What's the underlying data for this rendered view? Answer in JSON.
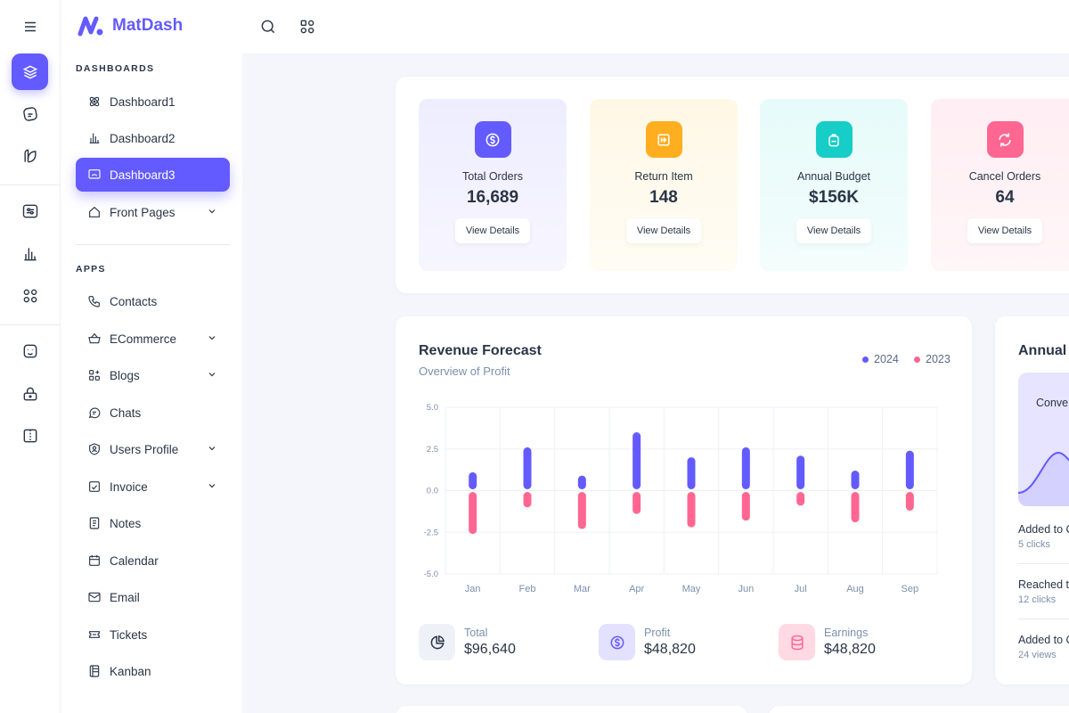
{
  "app": {
    "name": "MatDash"
  },
  "sidebar": {
    "dashboards_title": "DASHBOARDS",
    "apps_title": "APPS",
    "dashboards": [
      {
        "label": "Dashboard1",
        "icon": "atom-icon"
      },
      {
        "label": "Dashboard2",
        "icon": "chart-bar-icon"
      },
      {
        "label": "Dashboard3",
        "icon": "screen-share-icon",
        "active": true
      },
      {
        "label": "Front Pages",
        "icon": "home-icon",
        "expandable": true
      }
    ],
    "apps": [
      {
        "label": "Contacts",
        "icon": "phone-icon"
      },
      {
        "label": "ECommerce",
        "icon": "basket-icon",
        "expandable": true
      },
      {
        "label": "Blogs",
        "icon": "apps-icon",
        "expandable": true
      },
      {
        "label": "Chats",
        "icon": "message-icon"
      },
      {
        "label": "Users Profile",
        "icon": "user-shield-icon",
        "expandable": true
      },
      {
        "label": "Invoice",
        "icon": "file-check-icon",
        "expandable": true
      },
      {
        "label": "Notes",
        "icon": "notes-icon"
      },
      {
        "label": "Calendar",
        "icon": "calendar-icon"
      },
      {
        "label": "Email",
        "icon": "mail-icon"
      },
      {
        "label": "Tickets",
        "icon": "ticket-icon"
      },
      {
        "label": "Kanban",
        "icon": "kanban-icon"
      }
    ]
  },
  "rail": {
    "icons": [
      "menu-icon",
      "layers-icon",
      "sticker-icon",
      "leaf-icon",
      "adjustments-icon",
      "chart-bar-icon",
      "apps-icon",
      "mood-icon",
      "lock-icon",
      "layout-sidebar-icon"
    ]
  },
  "stats": [
    {
      "label": "Total Orders",
      "value": "16,689",
      "button": "View Details",
      "icon": "dollar-icon",
      "color": "#635bff",
      "bg": "#eeedff"
    },
    {
      "label": "Return Item",
      "value": "148",
      "button": "View Details",
      "icon": "receipt-refund-icon",
      "color": "#ffae1f",
      "bg": "#fff8e6"
    },
    {
      "label": "Annual Budget",
      "value": "$156K",
      "button": "View Details",
      "icon": "backpack-icon",
      "color": "#16cdc7",
      "bg": "#e6fbfa"
    },
    {
      "label": "Cancel Orders",
      "value": "64",
      "button": "View Details",
      "icon": "refresh-icon",
      "color": "#ff6692",
      "bg": "#ffeef3"
    }
  ],
  "revenue": {
    "title": "Revenue Forecast",
    "subtitle": "Overview of Profit",
    "summary": [
      {
        "label": "Total",
        "value": "$96,640",
        "icon": "pie-chart-icon",
        "bg": "#eef2f8",
        "color": "#2a3547"
      },
      {
        "label": "Profit",
        "value": "$48,820",
        "icon": "dollar-icon",
        "bg": "#e3e1ff",
        "color": "#635bff"
      },
      {
        "label": "Earnings",
        "value": "$48,820",
        "icon": "database-icon",
        "bg": "#ffd9e4",
        "color": "#ff6692"
      }
    ]
  },
  "chart_data": {
    "type": "bar",
    "categories": [
      "Jan",
      "Feb",
      "Mar",
      "Apr",
      "May",
      "Jun",
      "Jul",
      "Aug",
      "Sep"
    ],
    "series": [
      {
        "name": "2024",
        "color": "#635bff",
        "values": [
          1.1,
          2.6,
          0.9,
          3.5,
          2.0,
          2.6,
          2.1,
          1.2,
          2.4
        ]
      },
      {
        "name": "2023",
        "color": "#ff6692",
        "values": [
          -2.6,
          -1.0,
          -2.3,
          -1.4,
          -2.2,
          -1.8,
          -0.9,
          -1.9,
          -1.2
        ]
      }
    ],
    "yticks": [
      "5.0",
      "2.5",
      "0.0",
      "-2.5",
      "-5.0"
    ],
    "ylim": [
      -5,
      5
    ],
    "grid": true,
    "legend_position": "top-right"
  },
  "annual": {
    "title": "Annual P",
    "chart_label": "Conve",
    "rows": [
      {
        "title": "Added to C",
        "sub": "5 clicks"
      },
      {
        "title": "Reached to",
        "sub": "12 clicks"
      },
      {
        "title": "Added to C",
        "sub": "24 views"
      }
    ]
  }
}
